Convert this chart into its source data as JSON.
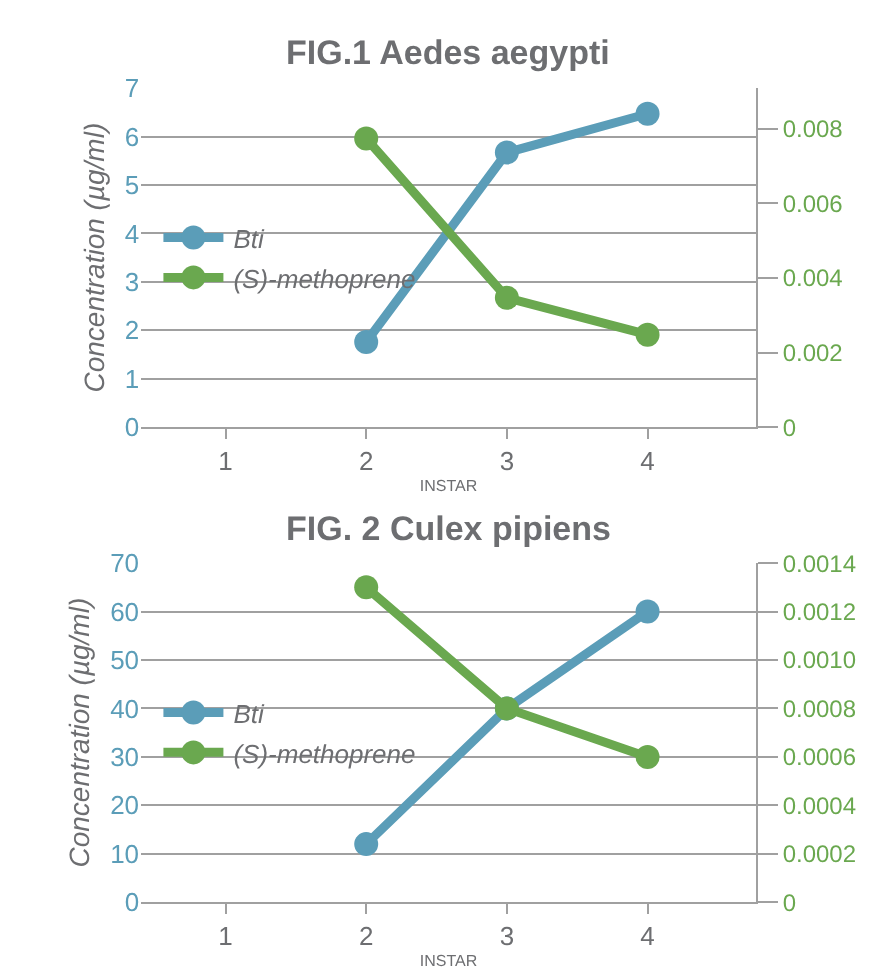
{
  "chart_data": [
    {
      "type": "line",
      "title": "FIG.1 Aedes aegypti",
      "xlabel": "INSTAR",
      "ylabel": "Concentration (µg/ml)",
      "x": [
        2,
        3,
        4
      ],
      "xlim": [
        0.4,
        4.77
      ],
      "xticks": [
        1,
        2,
        3,
        4
      ],
      "ylim": [
        0,
        7
      ],
      "yticks": [
        0,
        1,
        2,
        3,
        4,
        5,
        6,
        7
      ],
      "y2lim": [
        0,
        0.00909
      ],
      "y2ticks": [
        0,
        0.002,
        0.004,
        0.006,
        0.008
      ],
      "grid": "y",
      "legend": "left",
      "marker": "circle",
      "line_style": "solid",
      "series": [
        {
          "name": "Bti",
          "color": "#5b9db8",
          "values": [
            1.76,
            5.67,
            6.47
          ]
        },
        {
          "name": "(S)-methoprene",
          "color": "#6aa84f",
          "axis": "y2",
          "values": [
            0.00774,
            0.00347,
            0.00248
          ]
        }
      ]
    },
    {
      "type": "line",
      "title": "FIG. 2 Culex pipiens",
      "xlabel": "INSTAR",
      "ylabel": "Concentration (µg/ml)",
      "x": [
        2,
        3,
        4
      ],
      "xlim": [
        0.4,
        4.77
      ],
      "xticks": [
        1,
        2,
        3,
        4
      ],
      "ylim": [
        0,
        70
      ],
      "yticks": [
        0,
        10,
        20,
        30,
        40,
        50,
        60,
        70
      ],
      "y2lim": [
        0,
        0.0014
      ],
      "y2ticks": [
        0,
        0.0002,
        0.0004,
        0.0006,
        0.0008,
        {
          "value": 0.001,
          "label": "0.0010"
        },
        0.0012,
        0.0014
      ],
      "grid": "y",
      "legend": "left",
      "marker": "circle",
      "line_style": "solid",
      "series": [
        {
          "name": "Bti",
          "color": "#5b9db8",
          "values": [
            12,
            40,
            60
          ]
        },
        {
          "name": "(S)-methoprene",
          "color": "#6aa84f",
          "axis": "y2",
          "values": [
            0.0013,
            0.0008,
            0.0006
          ]
        }
      ]
    }
  ]
}
